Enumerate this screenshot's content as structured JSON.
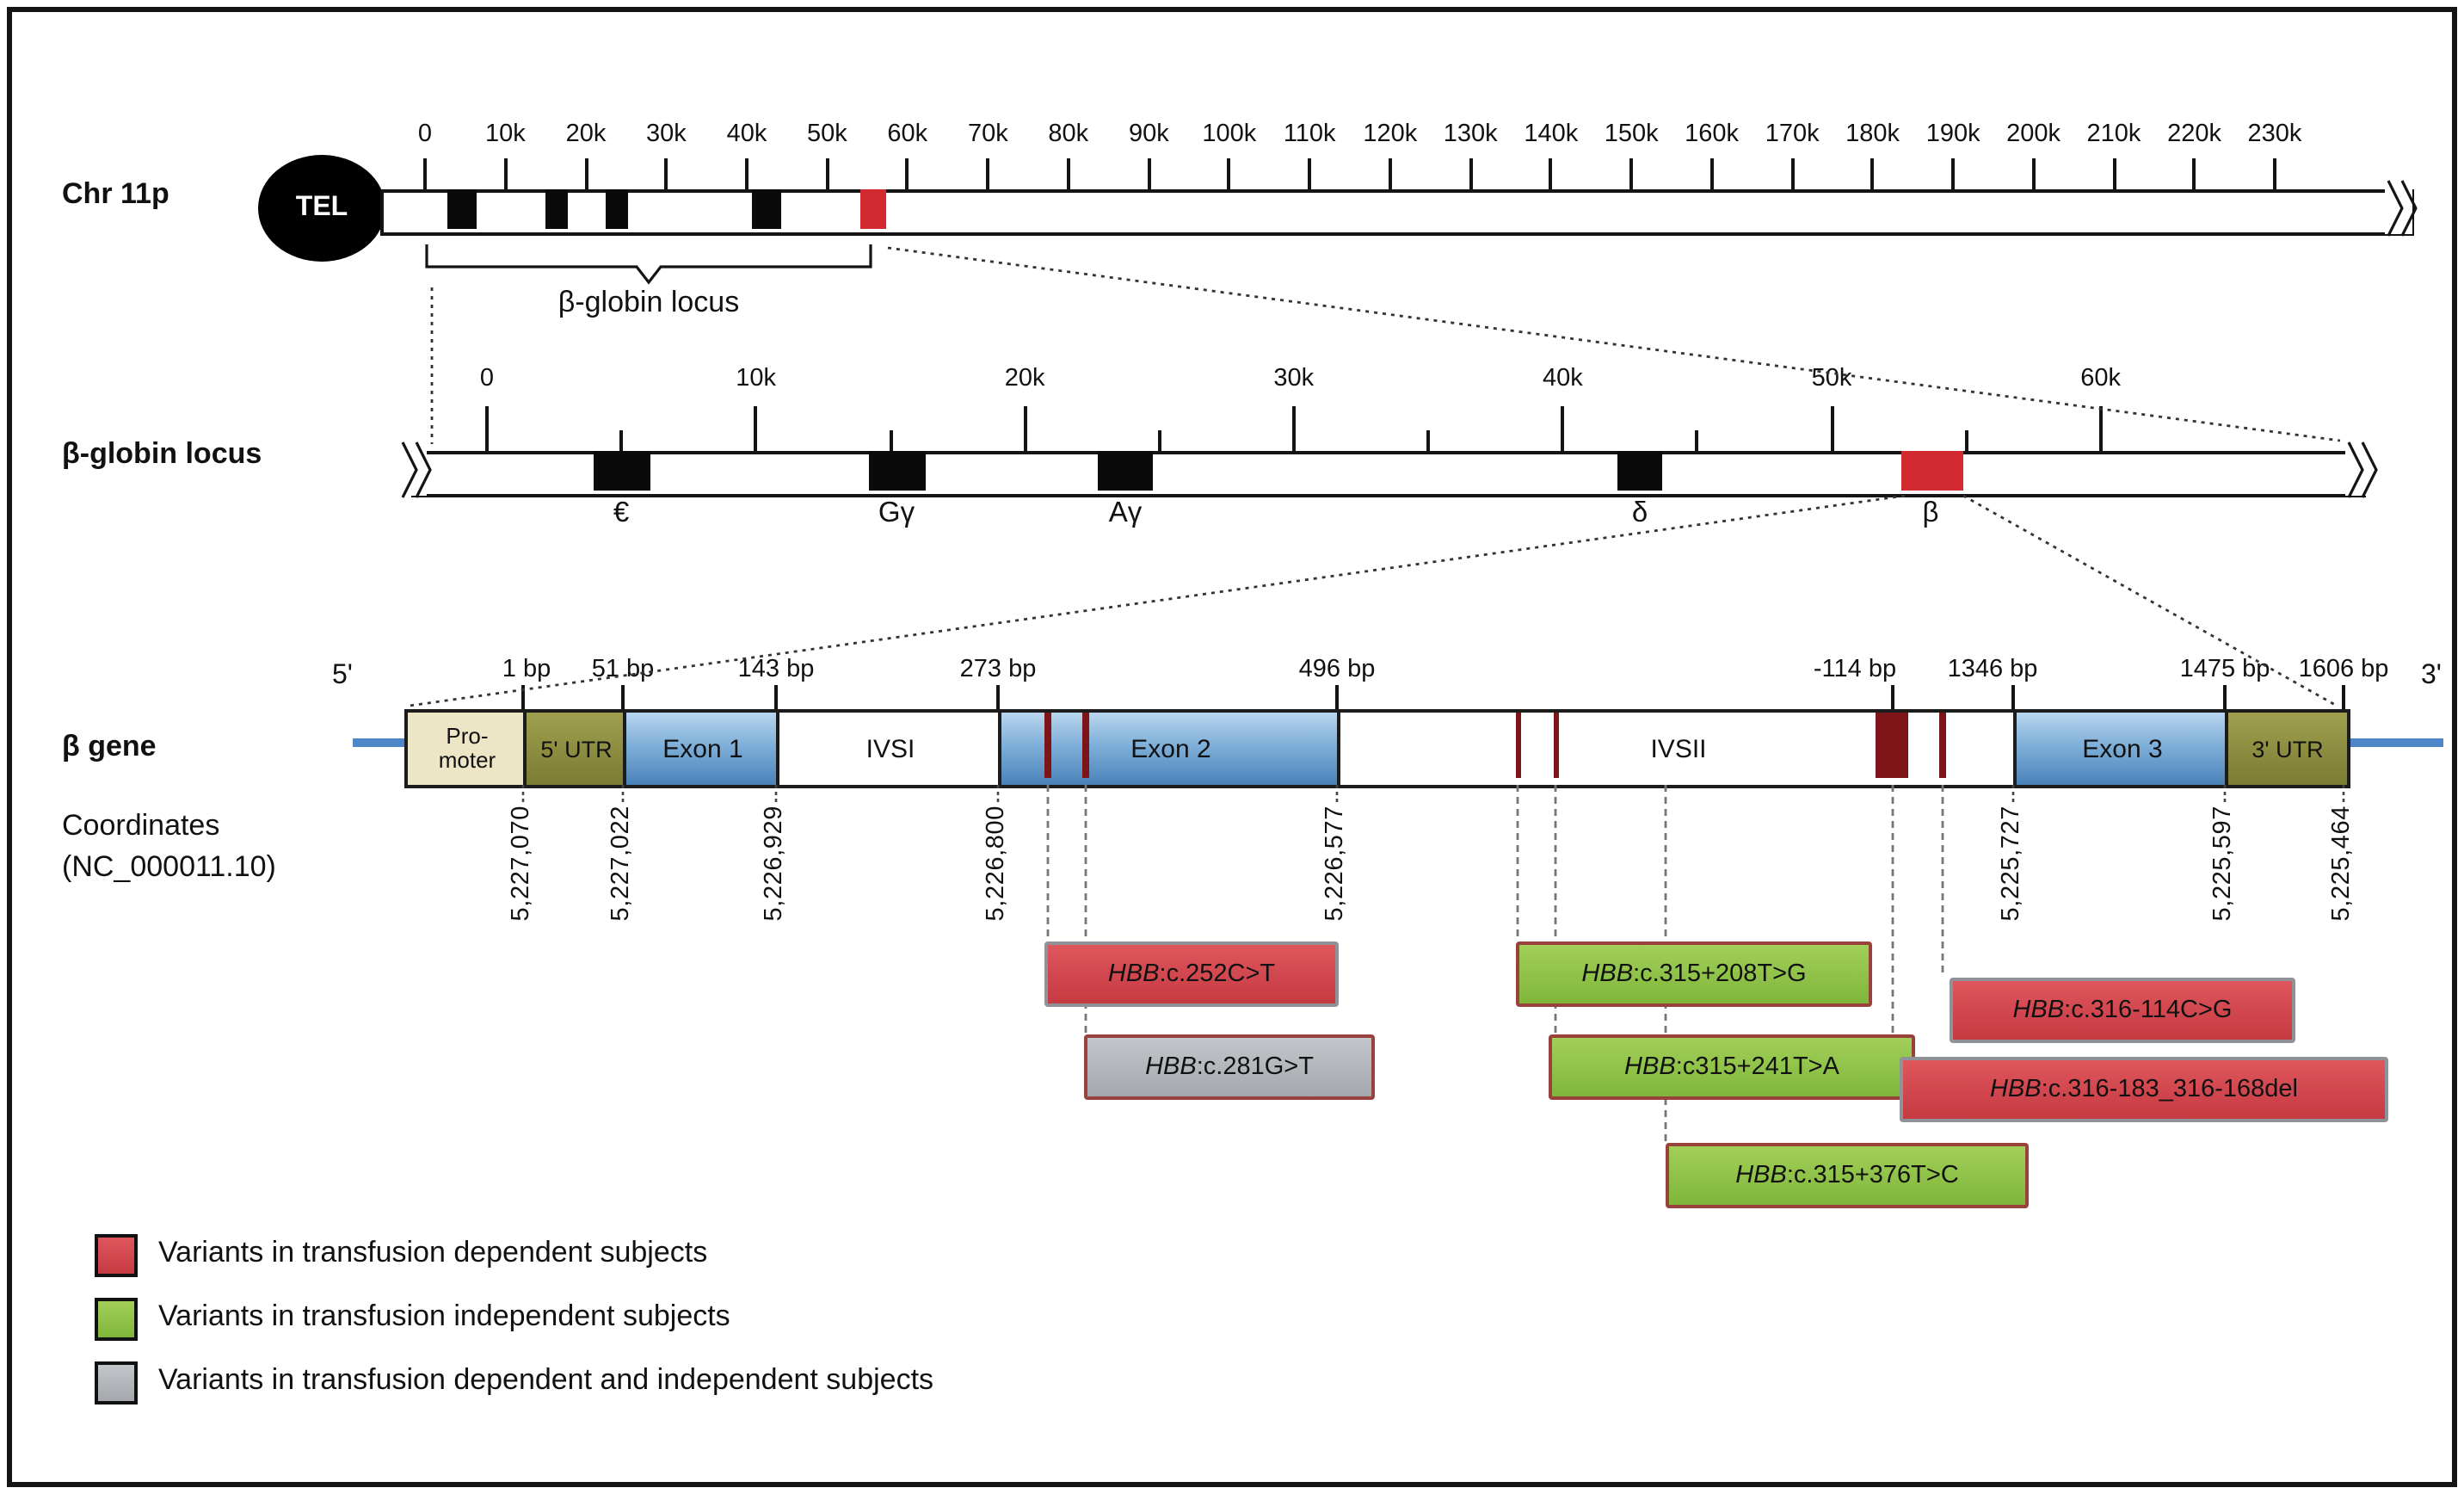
{
  "chr11p": {
    "label": "Chr 11p",
    "tel_label": "TEL",
    "ticks": [
      "0",
      "10k",
      "20k",
      "30k",
      "40k",
      "50k",
      "60k",
      "70k",
      "80k",
      "90k",
      "100k",
      "110k",
      "120k",
      "130k",
      "140k",
      "150k",
      "160k",
      "170k",
      "180k",
      "190k",
      "200k",
      "210k",
      "220k",
      "230k"
    ],
    "bracket_label": "β-globin locus"
  },
  "locus": {
    "label": "β-globin locus",
    "ticks": [
      "0",
      "10k",
      "20k",
      "30k",
      "40k",
      "50k",
      "60k"
    ],
    "genes": [
      {
        "name": "epsilon",
        "label": "€"
      },
      {
        "name": "g-gamma",
        "label": "Gγ"
      },
      {
        "name": "a-gamma",
        "label": "Aγ"
      },
      {
        "name": "delta",
        "label": "δ"
      },
      {
        "name": "beta",
        "label": "β"
      }
    ]
  },
  "gene": {
    "label": "β gene",
    "five_prime": "5'",
    "three_prime": "3'",
    "bp_labels": [
      "1 bp",
      "51 bp",
      "143 bp",
      "273 bp",
      "496 bp",
      "-114 bp",
      "1346 bp",
      "1475 bp",
      "1606 bp"
    ],
    "segments": [
      {
        "name": "promoter",
        "label": "Pro-\nmoter"
      },
      {
        "name": "five-utr",
        "label": "5' UTR"
      },
      {
        "name": "exon1",
        "label": "Exon 1"
      },
      {
        "name": "ivsi",
        "label": "IVSI"
      },
      {
        "name": "exon2",
        "label": "Exon 2"
      },
      {
        "name": "ivsii",
        "label": "IVSII"
      },
      {
        "name": "exon3",
        "label": "Exon 3"
      },
      {
        "name": "three-utr",
        "label": "3' UTR"
      }
    ]
  },
  "coordinates": {
    "label": "Coordinates",
    "accession": "(NC_000011.10)",
    "values": [
      "5,227,070",
      "5,227,022",
      "5,226,929",
      "5,226,800",
      "5,226,577",
      "5,225,727",
      "5,225,597",
      "5,225,464"
    ]
  },
  "variants": [
    {
      "gene": "HBB",
      "suffix": ":c.252C>T",
      "type": "red"
    },
    {
      "gene": "HBB",
      "suffix": ":c.281G>T",
      "type": "gray"
    },
    {
      "gene": "HBB",
      "suffix": ":c.315+208T>G",
      "type": "green"
    },
    {
      "gene": "HBB",
      "suffix": ":c315+241T>A",
      "type": "green"
    },
    {
      "gene": "HBB",
      "suffix": ":c.315+376T>C",
      "type": "green"
    },
    {
      "gene": "HBB",
      "suffix": ":c.316-114C>G",
      "type": "red"
    },
    {
      "gene": "HBB",
      "suffix": ":c.316-183_316-168del",
      "type": "red"
    }
  ],
  "legend": [
    {
      "type": "red",
      "label": "Variants in transfusion dependent subjects"
    },
    {
      "type": "green",
      "label": "Variants in transfusion independent subjects"
    },
    {
      "type": "gray",
      "label": "Variants in transfusion dependent and independent subjects"
    }
  ],
  "colors": {
    "variant_red": "#d0434a",
    "variant_green": "#8cc043",
    "variant_gray": "#b3b6ba",
    "marker_red": "#d12a31",
    "dark_red_tick": "#7c1418",
    "exon_blue": "#5b8fc4",
    "utr_olive": "#8d8f3e",
    "promoter_beige": "#ece5c6",
    "flank_line_blue": "#4f86c9"
  }
}
